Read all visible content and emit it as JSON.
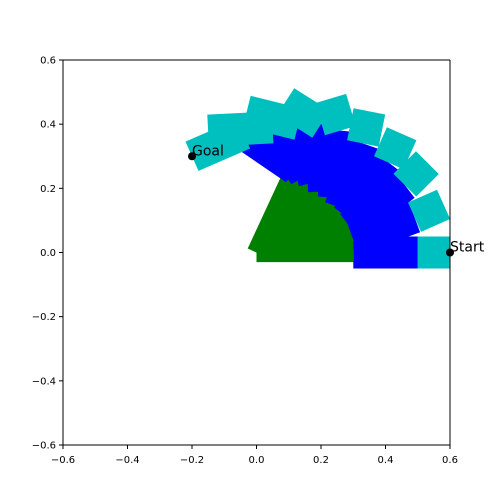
{
  "chart_data": {
    "type": "scatter",
    "title": "",
    "xlabel": "",
    "ylabel": "",
    "xlim": [
      -0.6,
      0.6
    ],
    "ylim": [
      -0.6,
      0.6
    ],
    "xticks": [
      -0.6,
      -0.4,
      -0.2,
      0.0,
      0.2,
      0.4,
      0.6
    ],
    "yticks": [
      -0.6,
      -0.4,
      -0.2,
      0.0,
      0.2,
      0.4,
      0.6
    ],
    "xtick_labels": [
      "−0.6",
      "−0.4",
      "−0.2",
      "0.0",
      "0.2",
      "0.4",
      "0.6"
    ],
    "ytick_labels": [
      "−0.6",
      "−0.4",
      "−0.2",
      "0.0",
      "0.2",
      "0.4",
      "0.6"
    ],
    "grid": false,
    "colors": {
      "link1": "#008000",
      "link2": "#0000ff",
      "link3": "#00bfbf",
      "points": "#000000"
    },
    "base": [
      0.0,
      0.0
    ],
    "link_widths": {
      "link1": 0.03,
      "link2": 0.05,
      "link3": 0.05
    },
    "arm_poses": [
      {
        "j1": [
          0.3,
          0.0
        ],
        "j2": [
          0.5,
          0.0
        ],
        "end": [
          0.6,
          0.0
        ]
      },
      {
        "j1": [
          0.3,
          0.04
        ],
        "j2": [
          0.49,
          0.11
        ],
        "end": [
          0.58,
          0.15
        ]
      },
      {
        "j1": [
          0.29,
          0.08
        ],
        "j2": [
          0.46,
          0.21
        ],
        "end": [
          0.53,
          0.28
        ]
      },
      {
        "j1": [
          0.28,
          0.11
        ],
        "j2": [
          0.41,
          0.28
        ],
        "end": [
          0.45,
          0.37
        ]
      },
      {
        "j1": [
          0.26,
          0.14
        ],
        "j2": [
          0.33,
          0.34
        ],
        "end": [
          0.35,
          0.44
        ]
      },
      {
        "j1": [
          0.24,
          0.17
        ],
        "j2": [
          0.26,
          0.38
        ],
        "end": [
          0.23,
          0.48
        ]
      },
      {
        "j1": [
          0.21,
          0.19
        ],
        "j2": [
          0.2,
          0.4
        ],
        "end": [
          0.09,
          0.47
        ]
      },
      {
        "j1": [
          0.18,
          0.22
        ],
        "j2": [
          0.13,
          0.4
        ],
        "end": [
          -0.03,
          0.44
        ]
      },
      {
        "j1": [
          0.15,
          0.24
        ],
        "j2": [
          0.05,
          0.39
        ],
        "end": [
          -0.15,
          0.38
        ]
      },
      {
        "j1": [
          0.12,
          0.26
        ],
        "j2": [
          -0.04,
          0.37
        ],
        "end": [
          -0.2,
          0.3
        ]
      }
    ],
    "points": [
      {
        "label": "Start",
        "x": 0.6,
        "y": 0.0
      },
      {
        "label": "Goal",
        "x": -0.2,
        "y": 0.3
      }
    ]
  }
}
